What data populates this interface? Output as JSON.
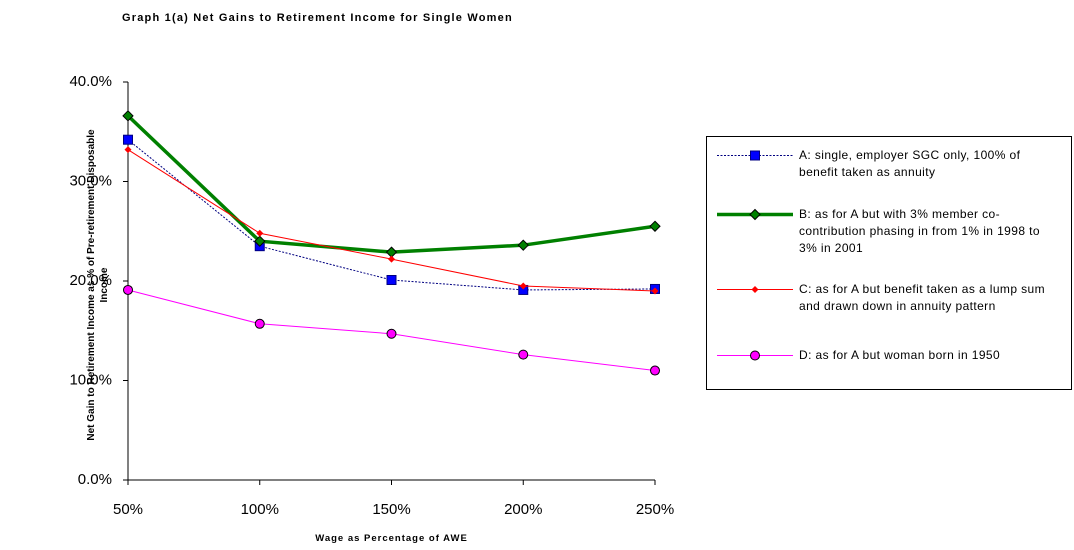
{
  "chart_data": {
    "type": "line",
    "title": "Graph 1(a)  Net Gains to Retirement Income for Single Women",
    "x_label": "Wage as Percentage of AWE",
    "y_label": "Net Gain to Retirement Income as % of Pre-retirement Disposable Income",
    "categories": [
      "50%",
      "100%",
      "150%",
      "200%",
      "250%"
    ],
    "series": [
      {
        "name": "A: single, employer SGC only, 100% of benefit taken as annuity",
        "color": "#0000ff",
        "line_color": "#000080",
        "marker": "square",
        "line_width": 1,
        "dash": true,
        "values": [
          34.2,
          23.5,
          20.1,
          19.1,
          19.2
        ]
      },
      {
        "name": "B: as for A but with 3% member co-contribution phasing in from 1% in 1998 to 3% in 2001",
        "color": "#008000",
        "line_color": "#008000",
        "marker": "diamond",
        "line_width": 3.5,
        "dash": false,
        "values": [
          36.6,
          24.0,
          22.9,
          23.6,
          25.5
        ]
      },
      {
        "name": "C: as for A but benefit taken as a lump sum and drawn down in annuity pattern",
        "color": "#ff0000",
        "line_color": "#ff0000",
        "marker": "small-diamond",
        "line_width": 1,
        "dash": false,
        "values": [
          33.2,
          24.8,
          22.2,
          19.5,
          19.0
        ]
      },
      {
        "name": "D: as for A but woman born in 1950",
        "color": "#ff00ff",
        "line_color": "#ff00ff",
        "marker": "circle",
        "line_width": 1,
        "dash": false,
        "values": [
          19.1,
          15.7,
          14.7,
          12.6,
          11.0
        ]
      }
    ],
    "ylim": [
      0,
      40
    ],
    "yticks": [
      {
        "value": 0,
        "label": "0.0%"
      },
      {
        "value": 10,
        "label": "10.0%"
      },
      {
        "value": 20,
        "label": "20.0%"
      },
      {
        "value": 30,
        "label": "30.0%"
      },
      {
        "value": 40,
        "label": "40.0%"
      }
    ],
    "legend": "right"
  }
}
